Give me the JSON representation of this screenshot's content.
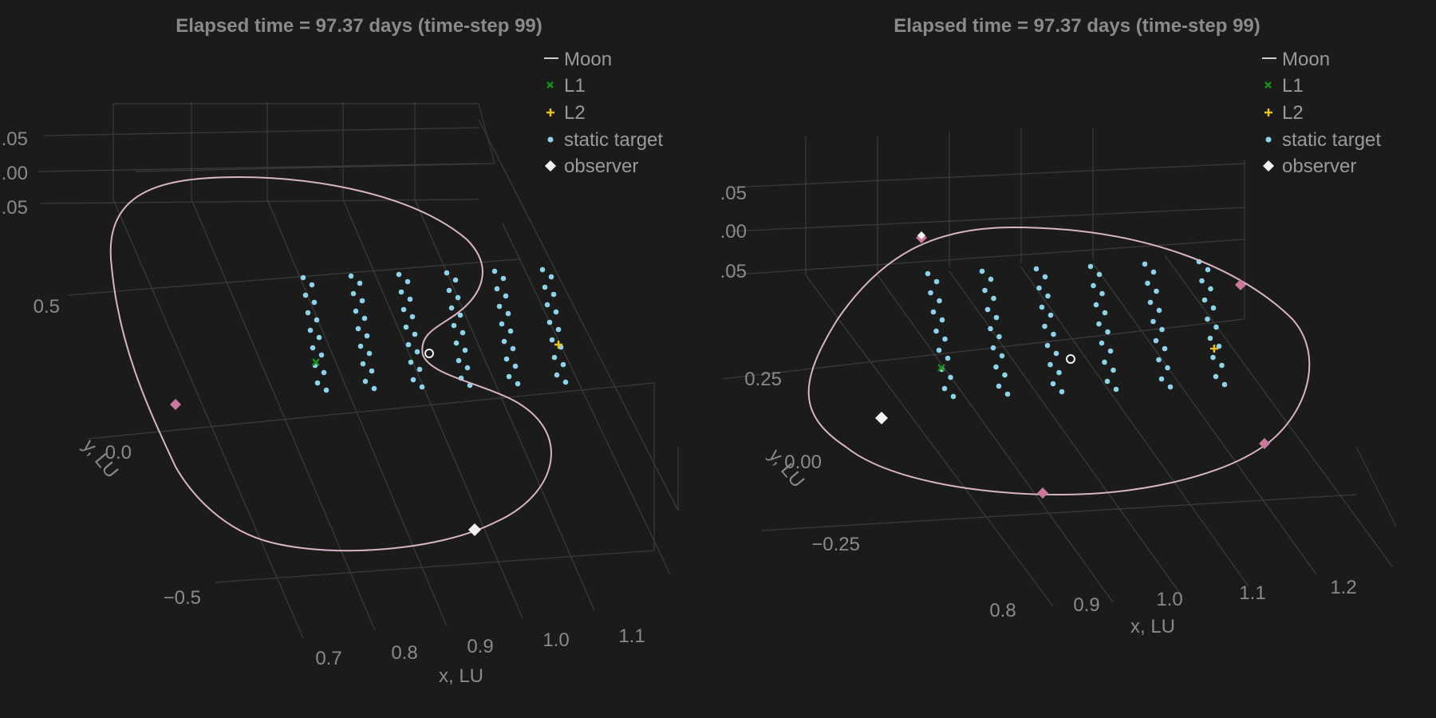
{
  "colors": {
    "background": "#1b1b1b",
    "text": "#8a8a8a",
    "grid": "#3a3a3a",
    "moon_orbit": "#d8b4c8",
    "L1": "#1e8c1e",
    "L2": "#e8c21a",
    "static_target": "#8fd3ea",
    "observer": "#f2f2f2",
    "orbit_marker": "#c8799a"
  },
  "legend": [
    {
      "key": "moon",
      "label": "Moon",
      "marker": "line"
    },
    {
      "key": "l1",
      "label": "L1",
      "marker": "cross-x"
    },
    {
      "key": "l2",
      "label": "L2",
      "marker": "cross-plus"
    },
    {
      "key": "static",
      "label": "static target",
      "marker": "dot"
    },
    {
      "key": "observer",
      "label": "observer",
      "marker": "diamond"
    }
  ],
  "chart_data": [
    {
      "type": "scatter",
      "projection": "3d",
      "title": "Elapsed time = 97.37 days (time-step 99)",
      "xlabel": "x, LU",
      "ylabel": "y, LU",
      "x_ticks": [
        "0.7",
        "0.8",
        "0.9",
        "1.0",
        "1.1"
      ],
      "y_ticks": [
        "0.5",
        "0.0",
        "−0.5"
      ],
      "z_ticks": [
        ".05",
        ".00",
        ".05"
      ],
      "legend_position": "top-right",
      "grid": true,
      "L1": [
        0.84,
        0.0
      ],
      "L2": [
        1.16,
        0.0
      ],
      "observers": 2,
      "static_target_grid": {
        "x_columns": 6,
        "y_rows": 7,
        "z_layers": 2
      }
    },
    {
      "type": "scatter",
      "projection": "3d",
      "title": "Elapsed time = 97.37 days (time-step 99)",
      "xlabel": "x, LU",
      "ylabel": "y, LU",
      "x_ticks": [
        "0.8",
        "0.9",
        "1.0",
        "1.1",
        "1.2"
      ],
      "y_ticks": [
        "0.25",
        "0.00",
        "−0.25"
      ],
      "z_ticks": [
        ".05",
        ".00",
        ".05"
      ],
      "legend_position": "top-right",
      "grid": true,
      "L1": [
        0.84,
        0.0
      ],
      "L2": [
        1.16,
        0.0
      ],
      "observers": 3,
      "static_target_grid": {
        "x_columns": 6,
        "y_rows": 7,
        "z_layers": 2
      }
    }
  ]
}
